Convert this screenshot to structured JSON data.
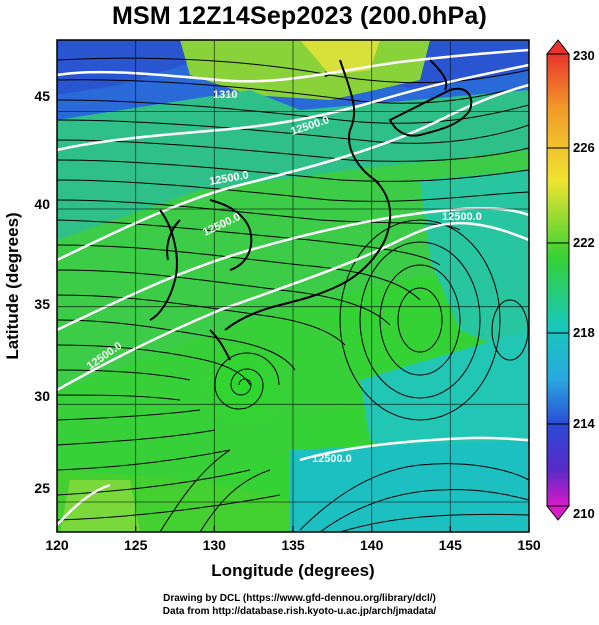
{
  "title": "MSM 12Z14Sep2023 (200.0hPa)",
  "xlabel": "Longitude (degrees)",
  "ylabel": "Latitude  (degrees)",
  "x_ticks": [
    "120",
    "125",
    "130",
    "135",
    "140",
    "145",
    "150"
  ],
  "y_ticks": [
    "25",
    "30",
    "35",
    "40",
    "45"
  ],
  "colorbar_ticks": [
    "230",
    "226",
    "222",
    "218",
    "214",
    "210"
  ],
  "contour_label": "12500.0",
  "contour_label_partial": "1310",
  "credits": {
    "line1": "Drawing by DCL (https://www.gfd-dennou.org/library/dcl/)",
    "line2": "Data from http://database.rish.kyoto-u.ac.jp/arch/jmadata/"
  },
  "colors": {
    "high": "#e8342a",
    "mid_high": "#f0e430",
    "mid": "#35d235",
    "mid_low": "#18c8b8",
    "low": "#2a4ad6",
    "lowest": "#d81ac8"
  },
  "chart_data": {
    "type": "heatmap",
    "title": "MSM 12Z14Sep2023 (200.0hPa)",
    "xlabel": "Longitude (degrees)",
    "ylabel": "Latitude  (degrees)",
    "xlim": [
      120,
      150
    ],
    "ylim": [
      22.4,
      47.6
    ],
    "colorbar_range": [
      210,
      230
    ],
    "colorbar_ticks": [
      210,
      214,
      218,
      222,
      226,
      230
    ],
    "overlays": [
      "streamlines",
      "contours",
      "coastlines",
      "grid"
    ],
    "contour_level": 12500.0,
    "grid": true
  }
}
